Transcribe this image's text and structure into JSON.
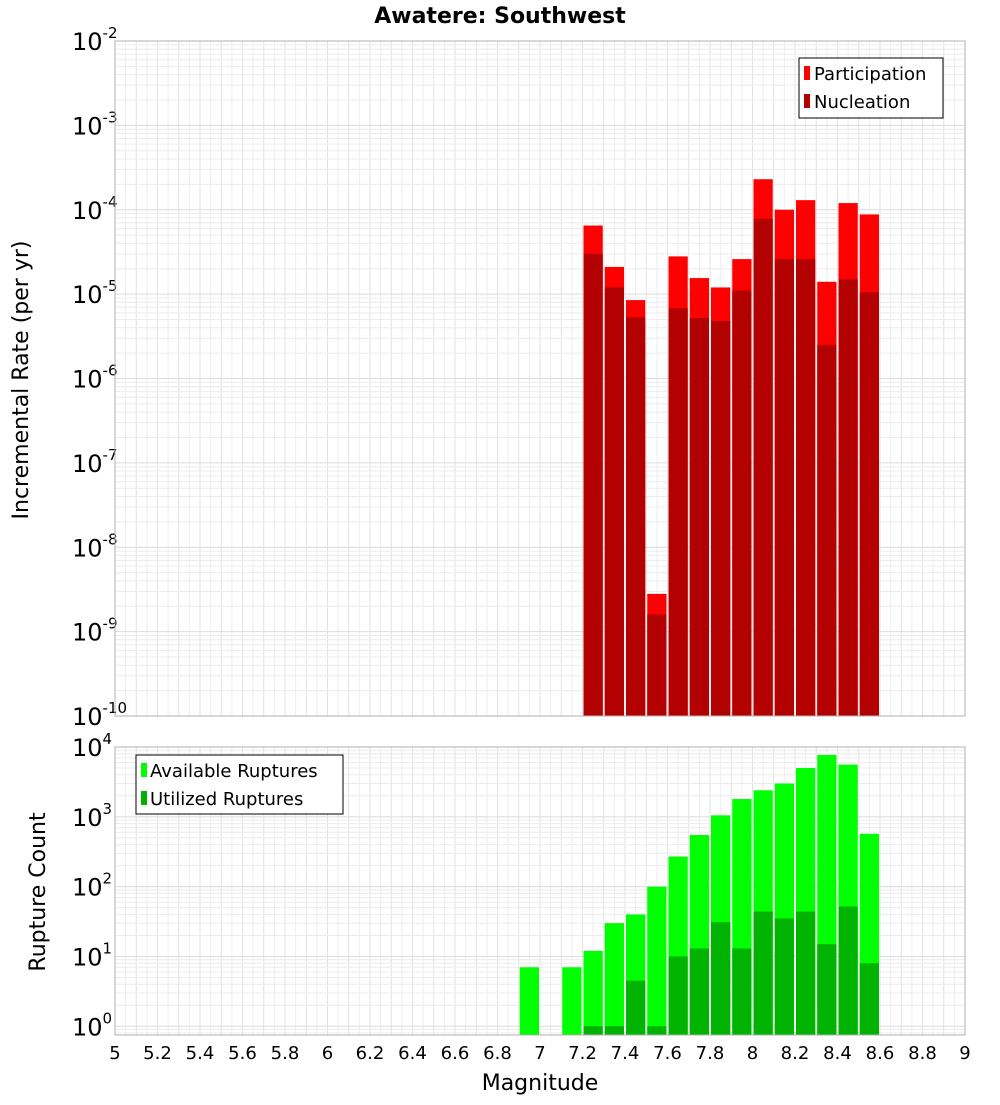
{
  "chart_data": [
    {
      "type": "bar",
      "title": "Awatere: Southwest",
      "xlabel": "Magnitude",
      "ylabel": "Incremental Rate (per yr)",
      "yscale": "log",
      "ylim": [
        1e-10,
        0.01
      ],
      "xlim": [
        5,
        9
      ],
      "bar_width": 0.1,
      "grid": true,
      "legend_position": "top-right",
      "overlay": true,
      "x": [
        7.25,
        7.35,
        7.45,
        7.55,
        7.65,
        7.75,
        7.85,
        7.95,
        8.05,
        8.15,
        8.25,
        8.35,
        8.45,
        8.55
      ],
      "series": [
        {
          "name": "Participation",
          "color": "#ff0000",
          "values": [
            6.5e-05,
            2.1e-05,
            8.5e-06,
            2.8e-09,
            2.8e-05,
            1.55e-05,
            1.2e-05,
            2.6e-05,
            0.00023,
            0.0001,
            0.00013,
            1.4e-05,
            0.00012,
            8.8e-05
          ]
        },
        {
          "name": "Nucleation",
          "color": "#b30000",
          "values": [
            3e-05,
            1.2e-05,
            5.3e-06,
            1.6e-09,
            6.8e-06,
            5.2e-06,
            4.8e-06,
            1.1e-05,
            7.8e-05,
            2.6e-05,
            2.6e-05,
            2.5e-06,
            1.5e-05,
            1.05e-05
          ]
        }
      ],
      "ytick_exponents": [
        -10,
        -9,
        -8,
        -7,
        -6,
        -5,
        -4,
        -3,
        -2
      ],
      "ytick_base": "10"
    },
    {
      "type": "bar",
      "xlabel": "Magnitude",
      "ylabel": "Rupture Count",
      "yscale": "log",
      "ylim": [
        0.75,
        10000
      ],
      "xlim": [
        5,
        9
      ],
      "bar_width": 0.1,
      "grid": true,
      "legend_position": "top-left",
      "overlay": true,
      "x": [
        6.95,
        7.15,
        7.25,
        7.35,
        7.45,
        7.55,
        7.65,
        7.75,
        7.85,
        7.95,
        8.05,
        8.15,
        8.25,
        8.35,
        8.45,
        8.55
      ],
      "series": [
        {
          "name": "Available Ruptures",
          "color": "#00ff00",
          "values": [
            7,
            7,
            12,
            30,
            40,
            100,
            270,
            550,
            1050,
            1800,
            2400,
            3000,
            5000,
            7700,
            5600,
            570
          ]
        },
        {
          "name": "Utilized Ruptures",
          "color": "#00b300",
          "values": [
            0,
            0,
            1,
            1,
            4.5,
            1,
            10,
            13,
            31,
            13,
            44,
            35,
            44,
            15,
            52,
            8
          ]
        }
      ],
      "ytick_exponents": [
        0,
        1,
        2,
        3,
        4
      ],
      "ytick_base": "10",
      "xticks": [
        "5",
        "5.2",
        "5.4",
        "5.6",
        "5.8",
        "6",
        "6.2",
        "6.4",
        "6.6",
        "6.8",
        "7",
        "7.2",
        "7.4",
        "7.6",
        "7.8",
        "8",
        "8.2",
        "8.4",
        "8.6",
        "8.8",
        "9"
      ]
    }
  ]
}
